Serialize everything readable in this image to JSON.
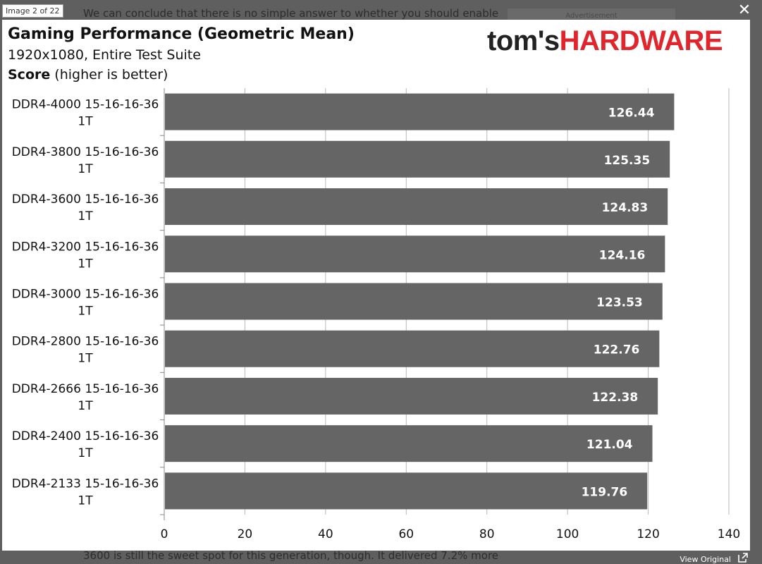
{
  "viewer": {
    "counter": "Image 2 of 22",
    "view_original": "View Original",
    "background_text_top": "We can conclude that there is no simple answer to whether you should enable",
    "background_ad": "Advertisement",
    "background_text_bottom": "3600 is still the sweet spot for this generation, though. It delivered 7.2% more"
  },
  "brand": {
    "part1": "tom's",
    "part2": "HARDWARE",
    "accent": "#e0262c"
  },
  "chart_data": {
    "type": "bar",
    "orientation": "horizontal",
    "title": "Gaming Performance (Geometric Mean)",
    "subtitle": "1920x1080, Entire Test Suite",
    "ylabel_bold": "Score",
    "ylabel_rest": " (higher is better)",
    "categories": [
      [
        "DDR4-4000 15-16-16-36",
        "1T"
      ],
      [
        "DDR4-3800 15-16-16-36",
        "1T"
      ],
      [
        "DDR4-3600 15-16-16-36",
        "1T"
      ],
      [
        "DDR4-3200 15-16-16-36",
        "1T"
      ],
      [
        "DDR4-3000 15-16-16-36",
        "1T"
      ],
      [
        "DDR4-2800 15-16-16-36",
        "1T"
      ],
      [
        "DDR4-2666 15-16-16-36",
        "1T"
      ],
      [
        "DDR4-2400 15-16-16-36",
        "1T"
      ],
      [
        "DDR4-2133 15-16-16-36",
        "1T"
      ]
    ],
    "values": [
      126.44,
      125.35,
      124.83,
      124.16,
      123.53,
      122.76,
      122.38,
      121.04,
      119.76
    ],
    "value_labels": [
      "126.44",
      "125.35",
      "124.83",
      "124.16",
      "123.53",
      "122.76",
      "122.38",
      "121.04",
      "119.76"
    ],
    "xlim": [
      0,
      140
    ],
    "xticks": [
      0,
      20,
      40,
      60,
      80,
      100,
      120,
      140
    ],
    "grid": true,
    "bar_color": "#666566",
    "label_color": "#ffffff"
  }
}
